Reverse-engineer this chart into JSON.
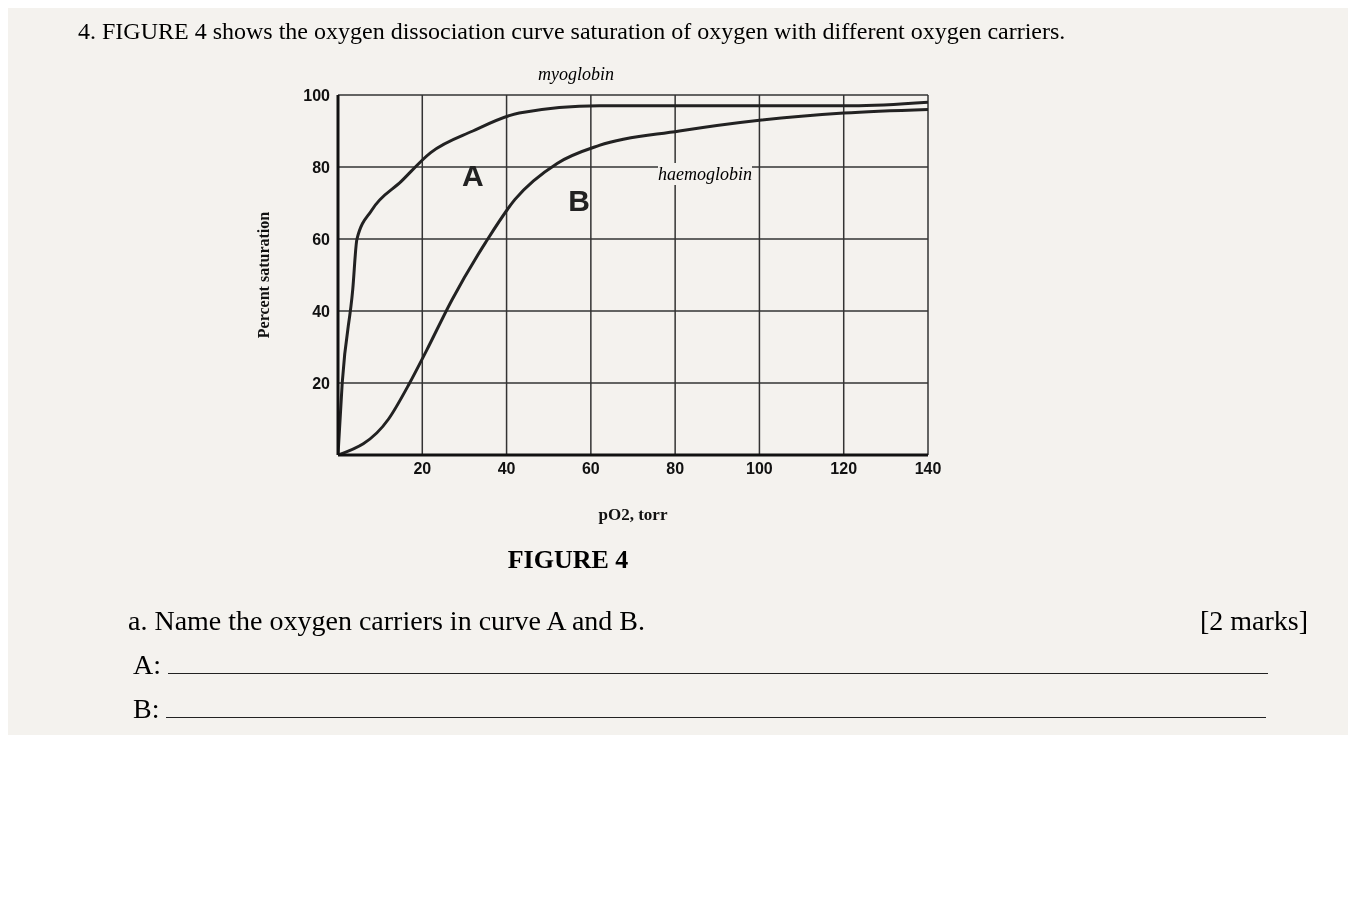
{
  "chart_data": {
    "type": "line",
    "title": "4. FIGURE 4 shows the oxygen dissociation curve saturation of oxygen with different oxygen carriers.",
    "xlabel": "pO2, torr",
    "ylabel": "Percent saturation",
    "xlim": [
      0,
      140
    ],
    "xticks": [
      20,
      40,
      60,
      80,
      100,
      120,
      140
    ],
    "ylim": [
      0,
      100
    ],
    "yticks": [
      20,
      40,
      60,
      80,
      100
    ],
    "grid": true,
    "marker": "none",
    "line_style": "solid",
    "series": [
      {
        "name": "A",
        "color": "#222222",
        "x": [
          0,
          1,
          3.5,
          4.5,
          8,
          15,
          22,
          32,
          43,
          62,
          81,
          100,
          122,
          140
        ],
        "values": [
          0,
          20,
          46,
          60,
          68,
          76,
          84,
          90,
          95,
          97,
          97,
          97,
          97,
          98
        ]
      },
      {
        "name": "B",
        "color": "#222222",
        "x": [
          0,
          12,
          17,
          21,
          27,
          35,
          42,
          52,
          62,
          81,
          100,
          120,
          140
        ],
        "values": [
          0,
          10,
          20,
          29,
          43,
          59,
          71,
          81,
          86,
          90,
          93,
          95,
          96
        ]
      }
    ],
    "annotations": [
      "myoglobin",
      "haemoglobin",
      "FIGURE 4",
      "a. Name the oxygen carriers in curve A and B.",
      "[2 marks]",
      "A:",
      "B:"
    ]
  }
}
